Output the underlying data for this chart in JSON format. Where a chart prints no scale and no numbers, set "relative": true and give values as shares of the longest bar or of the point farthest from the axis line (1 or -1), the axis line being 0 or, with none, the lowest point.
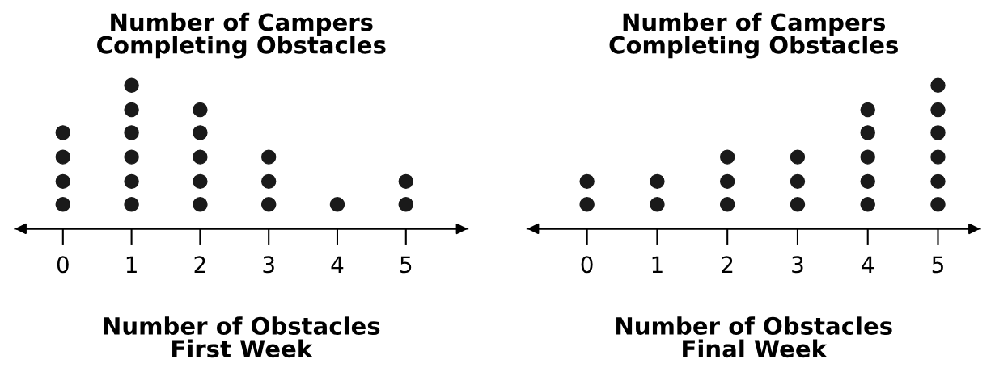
{
  "chart_data": [
    {
      "type": "scatter",
      "title": "Number of Campers\nCompleting Obstacles",
      "xlabel": "Number of Obstacles\nFirst Week",
      "color": "#1a1a1a",
      "marker": "circle",
      "grid": false,
      "x": [
        0,
        0,
        0,
        0,
        1,
        1,
        1,
        1,
        1,
        1,
        2,
        2,
        2,
        2,
        2,
        3,
        3,
        3,
        4,
        5,
        5
      ],
      "values": [
        0.17,
        0.33,
        0.5,
        0.67,
        0.17,
        0.33,
        0.5,
        0.67,
        0.83,
        1,
        0.17,
        0.33,
        0.5,
        0.67,
        0.83,
        0.17,
        0.33,
        0.5,
        0.17,
        0.17,
        0.33
      ],
      "relative": true,
      "xlim": [
        -0.7,
        5.9
      ],
      "xticks": [
        0,
        1,
        2,
        3,
        4,
        5
      ]
    },
    {
      "type": "scatter",
      "title": "Number of Campers\nCompleting Obstacles",
      "xlabel": "Number of Obstacles\nFinal Week",
      "color": "#1a1a1a",
      "marker": "circle",
      "grid": false,
      "x": [
        0,
        0,
        1,
        1,
        2,
        2,
        2,
        3,
        3,
        3,
        4,
        4,
        4,
        4,
        4,
        5,
        5,
        5,
        5,
        5,
        5
      ],
      "values": [
        0.17,
        0.33,
        0.17,
        0.33,
        0.17,
        0.33,
        0.5,
        0.17,
        0.33,
        0.5,
        0.17,
        0.33,
        0.5,
        0.67,
        0.83,
        0.17,
        0.33,
        0.5,
        0.67,
        0.83,
        1
      ],
      "relative": true,
      "xlim": [
        -0.85,
        5.6
      ],
      "xticks": [
        0,
        1,
        2,
        3,
        4,
        5
      ]
    }
  ]
}
